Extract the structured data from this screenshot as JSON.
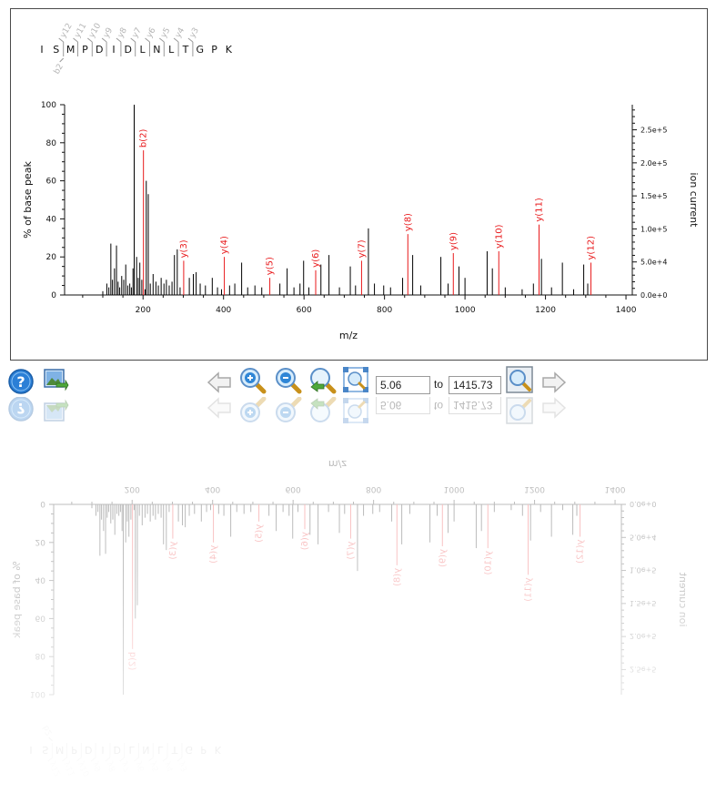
{
  "toolbar": {
    "help_icon": "help-icon",
    "export_icon": "export-image-icon",
    "back_icon": "arrow-left-icon",
    "zoom_in_icon": "zoom-in-icon",
    "zoom_out_icon": "zoom-out-icon",
    "zoom_reset_icon": "zoom-reset-icon",
    "zoom_fit_icon": "zoom-fit-icon",
    "range_from": "5.06",
    "range_to_label": "to",
    "range_to": "1415.73",
    "apply_icon": "zoom-range-icon",
    "forward_icon": "arrow-right-icon"
  },
  "chart_data": {
    "type": "bar",
    "peptide": [
      "I",
      "S",
      "M",
      "P",
      "D",
      "I",
      "D",
      "L",
      "N",
      "L",
      "T",
      "G",
      "P",
      "K"
    ],
    "fragment_labels_top": [
      "y12",
      "y11",
      "y10",
      "y9",
      "y8",
      "y7",
      "y6",
      "y5",
      "y4",
      "y3"
    ],
    "fragment_labels_bottom": [
      "b2"
    ],
    "xlabel": "m/z",
    "ylabel": "% of base peak",
    "ylabel_right": "ion current",
    "xlim": [
      5.06,
      1415.73
    ],
    "ylim": [
      0,
      100
    ],
    "x_ticks": [
      200,
      400,
      600,
      800,
      1000,
      1200,
      1400
    ],
    "y_ticks": [
      0,
      20,
      40,
      60,
      80,
      100
    ],
    "y2_ticks": [
      "0.0e+0",
      "5.0e+4",
      "1.0e+5",
      "1.5e+5",
      "2.0e+5",
      "2.5e+5"
    ],
    "colors": {
      "annotated": "#e8191b",
      "unannotated": "#000000"
    },
    "annotated_peaks": [
      {
        "label": "b(2)",
        "mz": 201,
        "intensity": 76
      },
      {
        "label": "y(3)",
        "mz": 301,
        "intensity": 18
      },
      {
        "label": "y(4)",
        "mz": 402,
        "intensity": 20
      },
      {
        "label": "y(5)",
        "mz": 515,
        "intensity": 9
      },
      {
        "label": "y(6)",
        "mz": 629,
        "intensity": 13
      },
      {
        "label": "y(7)",
        "mz": 743,
        "intensity": 18
      },
      {
        "label": "y(8)",
        "mz": 858,
        "intensity": 32
      },
      {
        "label": "y(9)",
        "mz": 971,
        "intensity": 22
      },
      {
        "label": "y(10)",
        "mz": 1084,
        "intensity": 23
      },
      {
        "label": "y(11)",
        "mz": 1184,
        "intensity": 37
      },
      {
        "label": "y(12)",
        "mz": 1313,
        "intensity": 17
      }
    ],
    "peaks": [
      {
        "mz": 100,
        "intensity": 2
      },
      {
        "mz": 110,
        "intensity": 6
      },
      {
        "mz": 115,
        "intensity": 4
      },
      {
        "mz": 120,
        "intensity": 27
      },
      {
        "mz": 124,
        "intensity": 8
      },
      {
        "mz": 129,
        "intensity": 14
      },
      {
        "mz": 134,
        "intensity": 26
      },
      {
        "mz": 138,
        "intensity": 7
      },
      {
        "mz": 142,
        "intensity": 4
      },
      {
        "mz": 147,
        "intensity": 10
      },
      {
        "mz": 152,
        "intensity": 8
      },
      {
        "mz": 157,
        "intensity": 16
      },
      {
        "mz": 162,
        "intensity": 5
      },
      {
        "mz": 167,
        "intensity": 6
      },
      {
        "mz": 171,
        "intensity": 4
      },
      {
        "mz": 175,
        "intensity": 14
      },
      {
        "mz": 178,
        "intensity": 100
      },
      {
        "mz": 184,
        "intensity": 20
      },
      {
        "mz": 188,
        "intensity": 9
      },
      {
        "mz": 192,
        "intensity": 17
      },
      {
        "mz": 197,
        "intensity": 8
      },
      {
        "mz": 205,
        "intensity": 3
      },
      {
        "mz": 208,
        "intensity": 60
      },
      {
        "mz": 213,
        "intensity": 53
      },
      {
        "mz": 218,
        "intensity": 6
      },
      {
        "mz": 225,
        "intensity": 11
      },
      {
        "mz": 232,
        "intensity": 7
      },
      {
        "mz": 238,
        "intensity": 5
      },
      {
        "mz": 245,
        "intensity": 9
      },
      {
        "mz": 252,
        "intensity": 6
      },
      {
        "mz": 258,
        "intensity": 8
      },
      {
        "mz": 265,
        "intensity": 5
      },
      {
        "mz": 272,
        "intensity": 7
      },
      {
        "mz": 278,
        "intensity": 21
      },
      {
        "mz": 285,
        "intensity": 24
      },
      {
        "mz": 292,
        "intensity": 4
      },
      {
        "mz": 315,
        "intensity": 9
      },
      {
        "mz": 325,
        "intensity": 11
      },
      {
        "mz": 332,
        "intensity": 12
      },
      {
        "mz": 342,
        "intensity": 6
      },
      {
        "mz": 355,
        "intensity": 5
      },
      {
        "mz": 372,
        "intensity": 9
      },
      {
        "mz": 385,
        "intensity": 4
      },
      {
        "mz": 395,
        "intensity": 3
      },
      {
        "mz": 415,
        "intensity": 5
      },
      {
        "mz": 428,
        "intensity": 6
      },
      {
        "mz": 445,
        "intensity": 17
      },
      {
        "mz": 460,
        "intensity": 4
      },
      {
        "mz": 478,
        "intensity": 5
      },
      {
        "mz": 495,
        "intensity": 4
      },
      {
        "mz": 540,
        "intensity": 6
      },
      {
        "mz": 558,
        "intensity": 14
      },
      {
        "mz": 575,
        "intensity": 4
      },
      {
        "mz": 590,
        "intensity": 6
      },
      {
        "mz": 599,
        "intensity": 18
      },
      {
        "mz": 612,
        "intensity": 4
      },
      {
        "mz": 642,
        "intensity": 16
      },
      {
        "mz": 662,
        "intensity": 21
      },
      {
        "mz": 688,
        "intensity": 4
      },
      {
        "mz": 715,
        "intensity": 15
      },
      {
        "mz": 728,
        "intensity": 5
      },
      {
        "mz": 760,
        "intensity": 35
      },
      {
        "mz": 775,
        "intensity": 6
      },
      {
        "mz": 798,
        "intensity": 5
      },
      {
        "mz": 815,
        "intensity": 4
      },
      {
        "mz": 845,
        "intensity": 9
      },
      {
        "mz": 870,
        "intensity": 21
      },
      {
        "mz": 890,
        "intensity": 5
      },
      {
        "mz": 940,
        "intensity": 20
      },
      {
        "mz": 958,
        "intensity": 6
      },
      {
        "mz": 985,
        "intensity": 15
      },
      {
        "mz": 1000,
        "intensity": 9
      },
      {
        "mz": 1055,
        "intensity": 23
      },
      {
        "mz": 1068,
        "intensity": 14
      },
      {
        "mz": 1100,
        "intensity": 4
      },
      {
        "mz": 1142,
        "intensity": 3
      },
      {
        "mz": 1170,
        "intensity": 6
      },
      {
        "mz": 1190,
        "intensity": 19
      },
      {
        "mz": 1215,
        "intensity": 4
      },
      {
        "mz": 1242,
        "intensity": 17
      },
      {
        "mz": 1270,
        "intensity": 3
      },
      {
        "mz": 1295,
        "intensity": 16
      },
      {
        "mz": 1305,
        "intensity": 6
      }
    ]
  }
}
